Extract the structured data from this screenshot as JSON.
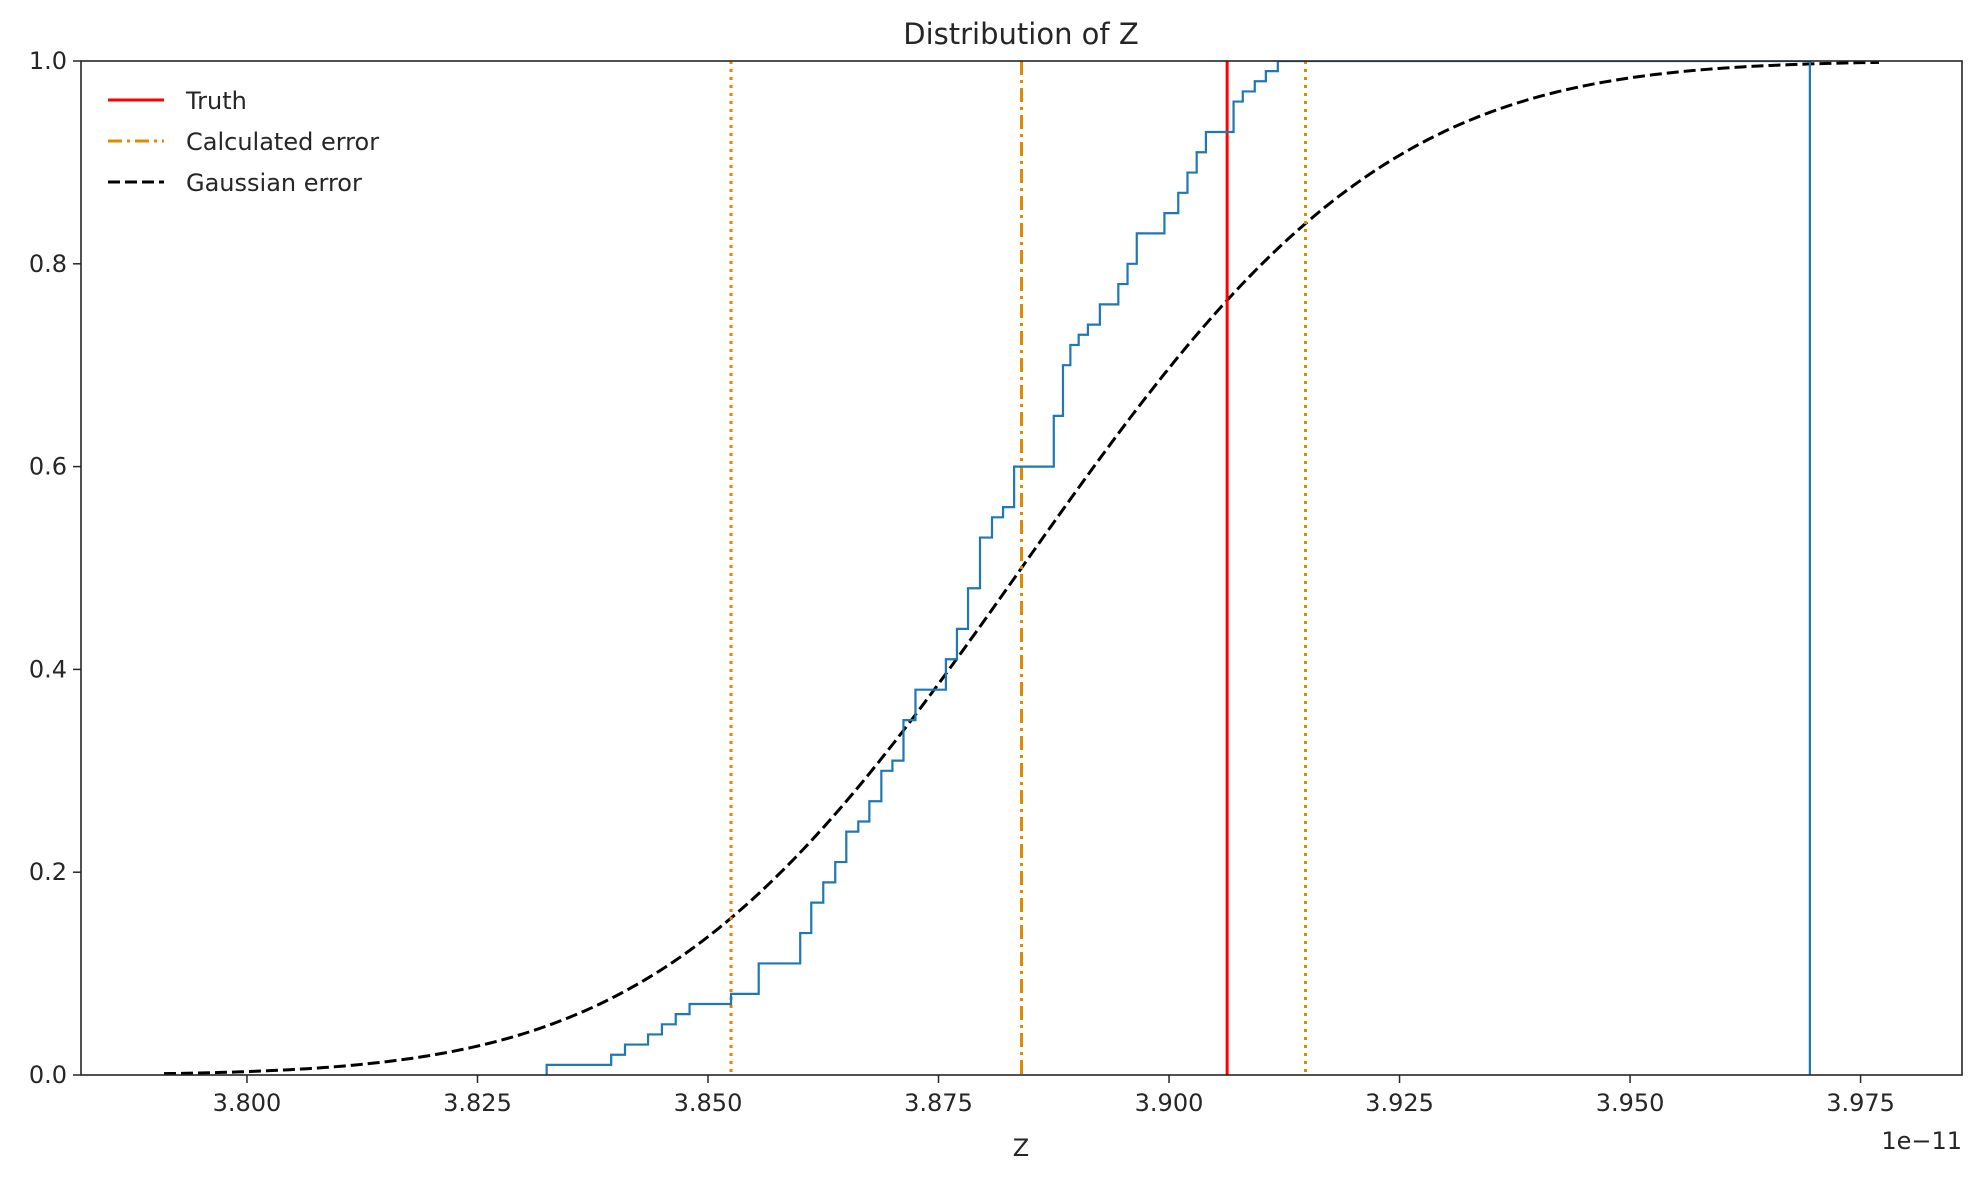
{
  "chart_data": {
    "type": "line",
    "title": "Distribution of Z",
    "xlabel": "Z",
    "ylabel": "",
    "x_offset_label": "1e−11",
    "xlim": [
      3.782,
      3.986
    ],
    "ylim": [
      0,
      1
    ],
    "x_ticks": [
      3.8,
      3.825,
      3.85,
      3.875,
      3.9,
      3.925,
      3.95,
      3.975
    ],
    "x_tick_labels": [
      "3.800",
      "3.825",
      "3.850",
      "3.875",
      "3.900",
      "3.925",
      "3.950",
      "3.975"
    ],
    "y_ticks": [
      0,
      0.2,
      0.4,
      0.6,
      0.8,
      1.0
    ],
    "y_tick_labels": [
      "0.0",
      "0.2",
      "0.4",
      "0.6",
      "0.8",
      "1.0"
    ],
    "grid": false,
    "legend_position": "upper-left",
    "legend": [
      {
        "label": "Truth",
        "color": "#ff0000",
        "style": "solid"
      },
      {
        "label": "Calculated error",
        "color": "#e08a00",
        "style": "dashdot"
      },
      {
        "label": "Gaussian error",
        "color": "#000000",
        "style": "dashed"
      }
    ],
    "vertical_lines": [
      {
        "x": 3.9063,
        "color": "#ff0000",
        "style": "solid"
      },
      {
        "x": 3.884,
        "color": "#e08a00",
        "style": "dashdot"
      },
      {
        "x": 3.8525,
        "color": "#f08000",
        "style": "dotted"
      },
      {
        "x": 3.9148,
        "color": "#e08a00",
        "style": "dotted"
      }
    ],
    "gaussian_cdf": {
      "mean": 3.884,
      "sigma": 0.031,
      "x_range": [
        3.791,
        3.977
      ],
      "color": "#000000",
      "style": "dashed"
    },
    "ecdf": {
      "color": "#1f77b4",
      "x": [
        3.8325,
        3.8395,
        3.841,
        3.8435,
        3.845,
        3.8465,
        3.848,
        3.8525,
        3.8555,
        3.86,
        3.8612,
        3.8625,
        3.8638,
        3.865,
        3.8663,
        3.8675,
        3.8688,
        3.87,
        3.8712,
        3.8725,
        3.8758,
        3.877,
        3.8782,
        3.8795,
        3.8808,
        3.882,
        3.8832,
        3.8875,
        3.8885,
        3.8893,
        3.8902,
        3.8912,
        3.8925,
        3.8945,
        3.8955,
        3.8965,
        3.8995,
        3.901,
        3.902,
        3.903,
        3.904,
        3.907,
        3.908,
        3.9093,
        3.9105,
        3.9118,
        3.9133,
        3.915,
        3.927,
        3.941,
        3.9695
      ],
      "y": [
        0.01,
        0.02,
        0.03,
        0.04,
        0.05,
        0.06,
        0.07,
        0.08,
        0.11,
        0.14,
        0.17,
        0.19,
        0.21,
        0.24,
        0.25,
        0.27,
        0.3,
        0.31,
        0.35,
        0.38,
        0.41,
        0.44,
        0.48,
        0.53,
        0.55,
        0.56,
        0.6,
        0.65,
        0.7,
        0.72,
        0.73,
        0.74,
        0.76,
        0.78,
        0.8,
        0.83,
        0.85,
        0.87,
        0.89,
        0.91,
        0.93,
        0.96,
        0.97,
        0.98,
        0.99,
        1.0,
        1.0,
        1.0,
        1.0,
        1.0,
        1.0
      ]
    }
  }
}
